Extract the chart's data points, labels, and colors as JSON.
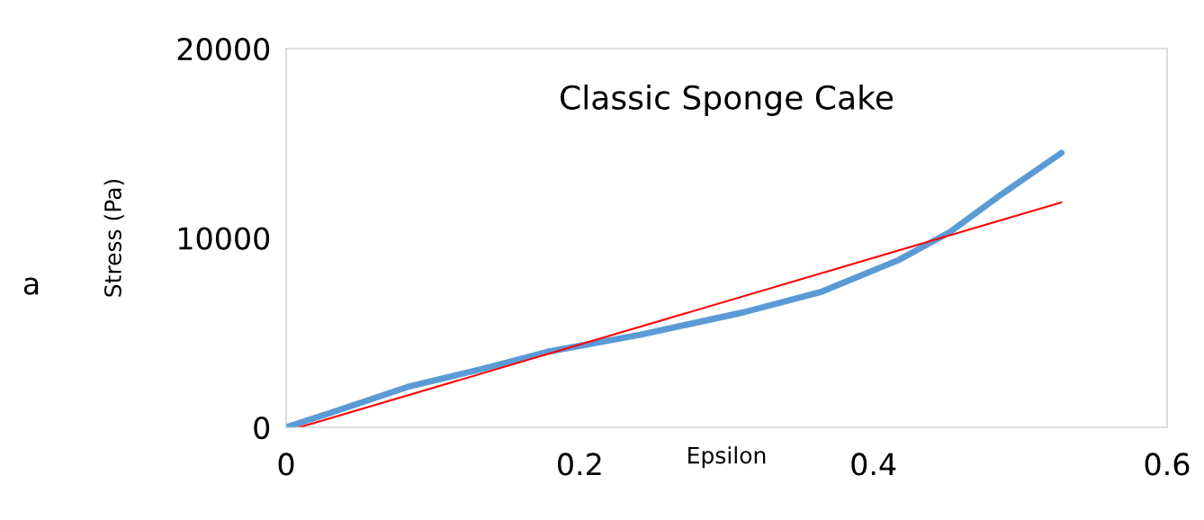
{
  "chart_data": {
    "type": "line",
    "title": "Classic Sponge Cake",
    "xlabel": "Epsilon",
    "ylabel": "Stress (Pa)",
    "annotations": [
      "a"
    ],
    "xlim": [
      0,
      0.6
    ],
    "xticks": [
      0,
      0.2,
      0.4,
      0.6
    ],
    "ylim": [
      0,
      20000
    ],
    "yticks": [
      0,
      10000,
      20000
    ],
    "grid": false,
    "legend": false,
    "marker": "none",
    "series": [
      {
        "color": "#5b9bd5",
        "x": [
          0,
          0.03,
          0.083,
          0.136,
          0.178,
          0.241,
          0.312,
          0.365,
          0.417,
          0.452,
          0.488,
          0.528
        ],
        "values": [
          0,
          760,
          2140,
          3130,
          3990,
          4890,
          6080,
          7170,
          8830,
          10310,
          12350,
          14490
        ]
      },
      {
        "color": "#ff0000",
        "x": [
          0.009,
          0.528
        ],
        "values": [
          0,
          11880
        ]
      }
    ]
  }
}
